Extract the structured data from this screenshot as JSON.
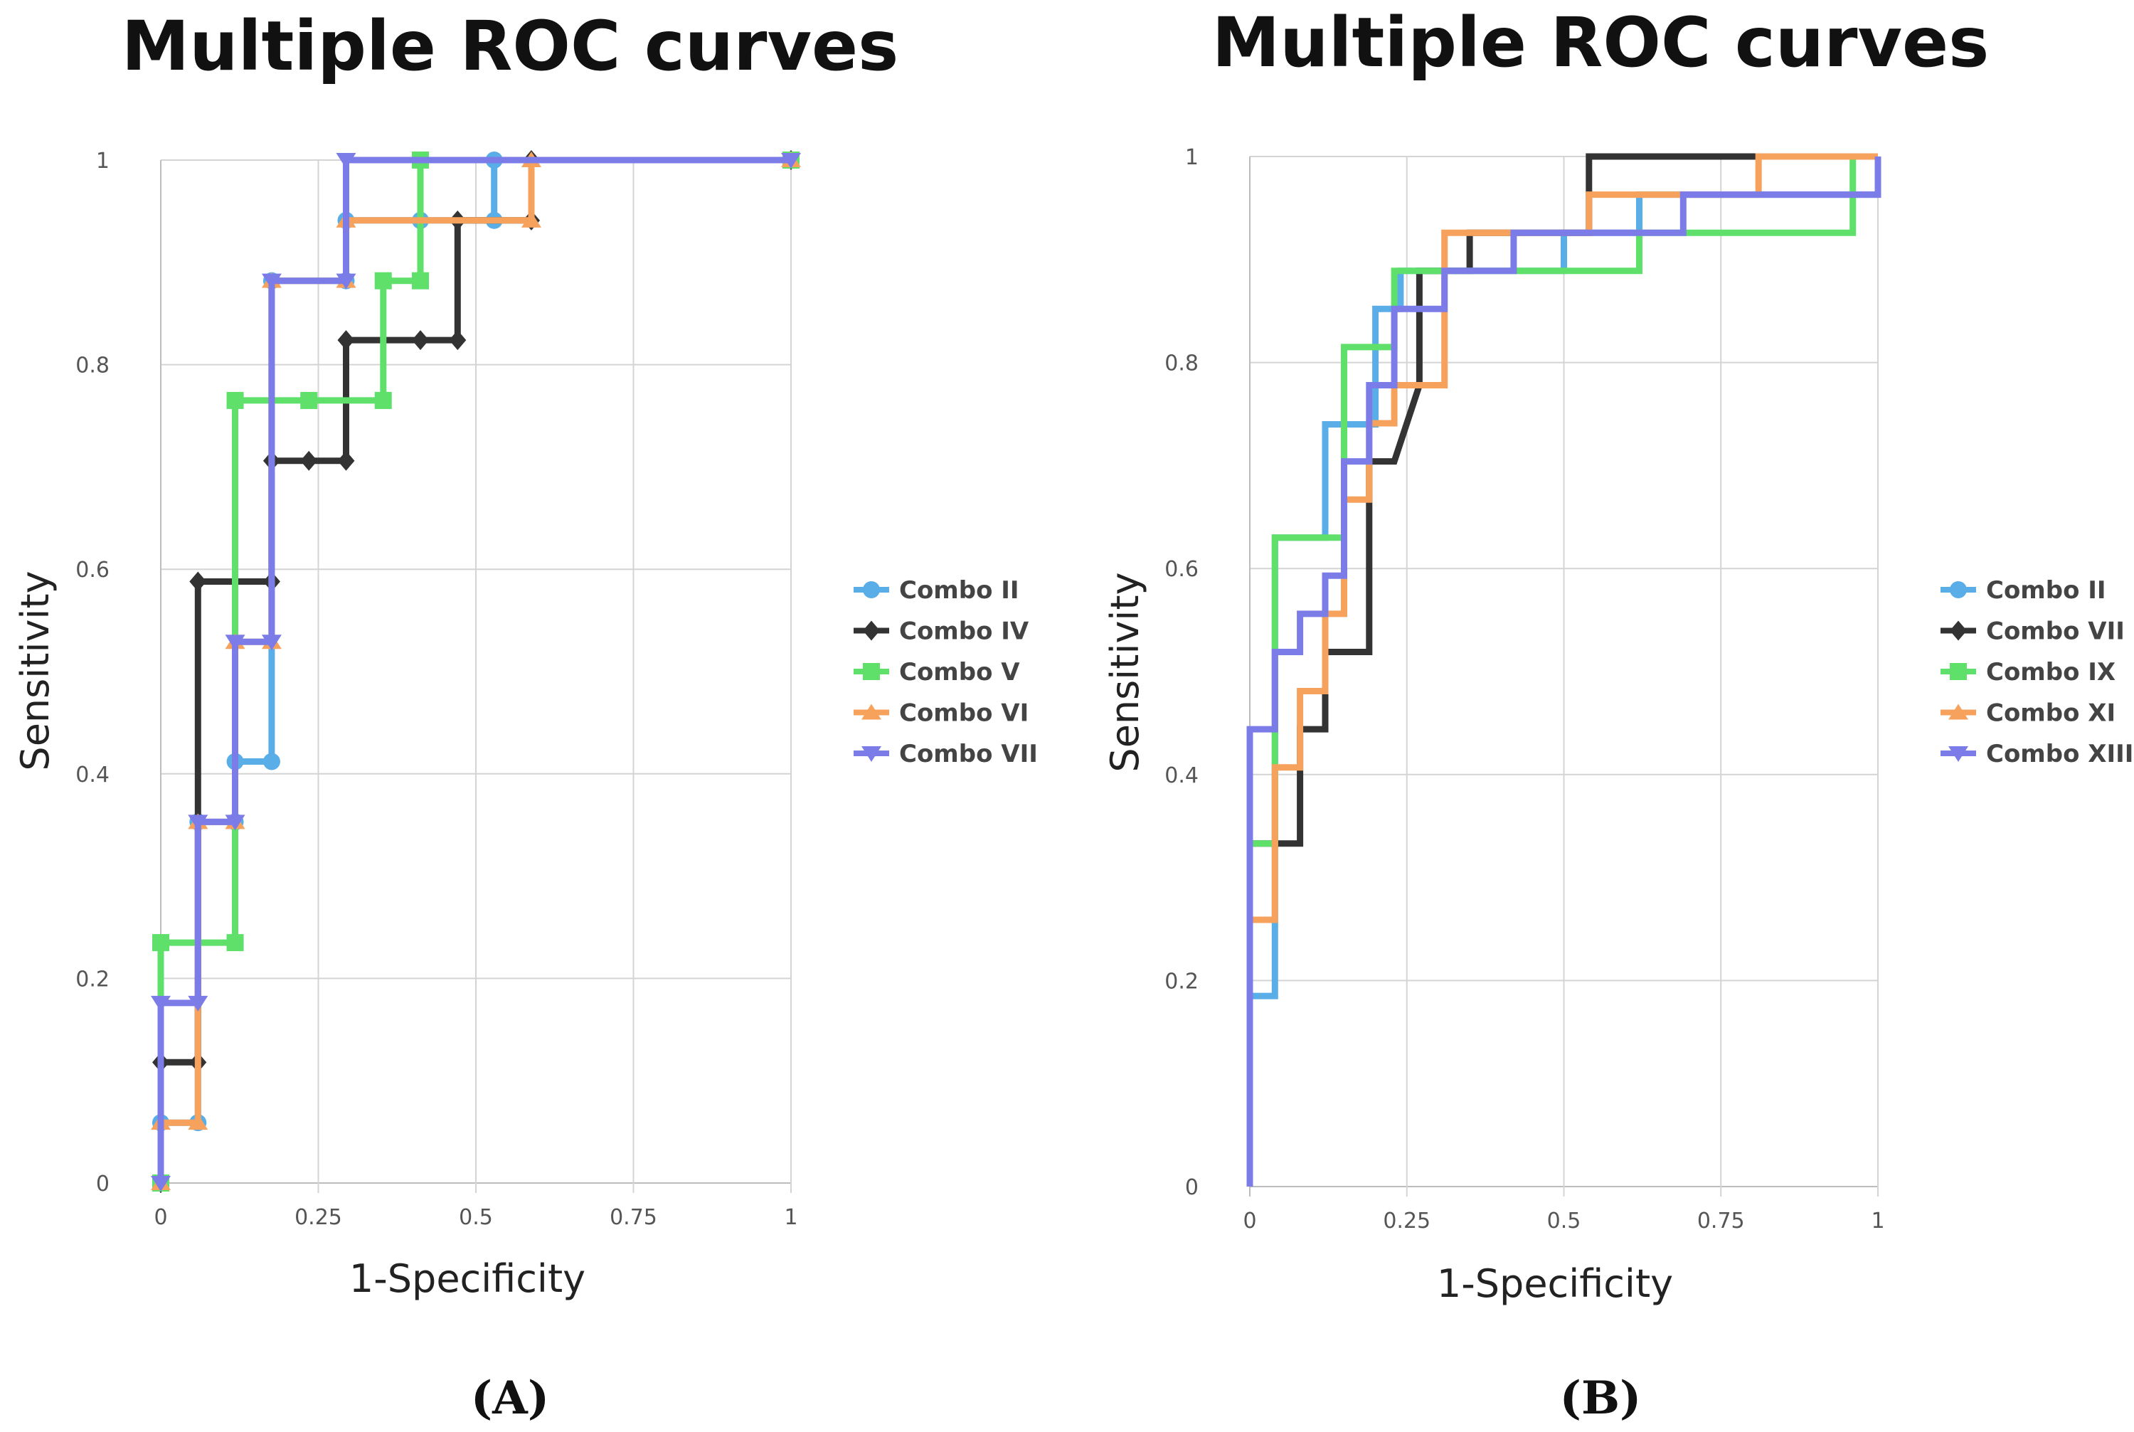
{
  "colors": {
    "combo_blue": "#5aaee8",
    "combo_dark": "#333333",
    "combo_green": "#5ee06a",
    "combo_orange": "#f6a25c",
    "combo_purple": "#7c7ce8"
  },
  "chart_data": [
    {
      "type": "line",
      "title": "Multiple ROC curves",
      "caption": "(A)",
      "xlabel": "1-Specificity",
      "ylabel": "Sensitivity",
      "xlim": [
        0,
        1
      ],
      "ylim": [
        0,
        1
      ],
      "grid": true,
      "legend_position": "right",
      "x_ticks": [
        0,
        0.25,
        0.5,
        0.75,
        1
      ],
      "x_tick_labels": [
        "0",
        "0.25",
        "0.5",
        "0.75",
        "1"
      ],
      "y_ticks": [
        0,
        0.2,
        0.4,
        0.6,
        0.8,
        1
      ],
      "y_tick_labels": [
        "0",
        "0.2",
        "0.4",
        "0.6",
        "0.8",
        "1"
      ],
      "series": [
        {
          "name": "Combo II",
          "color": "#5aaee8",
          "marker": "circle",
          "x": [
            0,
            0,
            0.059,
            0.059,
            0.118,
            0.118,
            0.176,
            0.176,
            0.294,
            0.294,
            0.412,
            0.412,
            0.529,
            0.529,
            1
          ],
          "y": [
            0,
            0.059,
            0.059,
            0.353,
            0.353,
            0.412,
            0.412,
            0.882,
            0.882,
            0.941,
            0.941,
            0.941,
            0.941,
            1,
            1
          ]
        },
        {
          "name": "Combo IV",
          "color": "#333333",
          "marker": "diamond",
          "x": [
            0,
            0,
            0.059,
            0.059,
            0.176,
            0.176,
            0.235,
            0.294,
            0.294,
            0.412,
            0.471,
            0.471,
            0.588,
            0.588,
            1
          ],
          "y": [
            0,
            0.118,
            0.118,
            0.588,
            0.588,
            0.706,
            0.706,
            0.706,
            0.824,
            0.824,
            0.824,
            0.941,
            0.941,
            1,
            1
          ]
        },
        {
          "name": "Combo V",
          "color": "#5ee06a",
          "marker": "square",
          "x": [
            0,
            0,
            0.118,
            0.118,
            0.235,
            0.353,
            0.353,
            0.412,
            0.412,
            1
          ],
          "y": [
            0,
            0.235,
            0.235,
            0.765,
            0.765,
            0.765,
            0.882,
            0.882,
            1,
            1
          ]
        },
        {
          "name": "Combo VI",
          "color": "#f6a25c",
          "marker": "triangle-up",
          "x": [
            0,
            0,
            0.059,
            0.059,
            0.118,
            0.118,
            0.176,
            0.176,
            0.294,
            0.294,
            0.588,
            0.588,
            1
          ],
          "y": [
            0,
            0.059,
            0.059,
            0.353,
            0.353,
            0.529,
            0.529,
            0.882,
            0.882,
            0.941,
            0.941,
            1,
            1
          ]
        },
        {
          "name": "Combo VII",
          "color": "#7c7ce8",
          "marker": "triangle-down",
          "x": [
            0,
            0,
            0.059,
            0.059,
            0.118,
            0.118,
            0.176,
            0.176,
            0.294,
            0.294,
            1
          ],
          "y": [
            0,
            0.176,
            0.176,
            0.353,
            0.353,
            0.529,
            0.529,
            0.882,
            0.882,
            1,
            1
          ]
        }
      ]
    },
    {
      "type": "line",
      "title": "Multiple ROC curves",
      "caption": "(B)",
      "xlabel": "1-Specificity",
      "ylabel": "Sensitivity",
      "xlim": [
        0,
        1
      ],
      "ylim": [
        0,
        1
      ],
      "grid": true,
      "legend_position": "right",
      "x_ticks": [
        0,
        0.25,
        0.5,
        0.75,
        1
      ],
      "x_tick_labels": [
        "0",
        "0.25",
        "0.5",
        "0.75",
        "1"
      ],
      "y_ticks": [
        0,
        0.2,
        0.4,
        0.6,
        0.8,
        1
      ],
      "y_tick_labels": [
        "0",
        "0.2",
        "0.4",
        "0.6",
        "0.8",
        "1"
      ],
      "series": [
        {
          "name": "Combo II",
          "color": "#5aaee8",
          "marker": "circle",
          "x": [
            0,
            0,
            0.04,
            0.04,
            0.12,
            0.12,
            0.2,
            0.2,
            0.24,
            0.24,
            0.31,
            0.31,
            0.5,
            0.5,
            0.62,
            0.62,
            1
          ],
          "y": [
            0,
            0.185,
            0.185,
            0.63,
            0.63,
            0.74,
            0.74,
            0.852,
            0.852,
            0.889,
            0.889,
            0.889,
            0.889,
            0.926,
            0.926,
            0.963,
            0.963
          ]
        },
        {
          "name": "Combo VII",
          "color": "#333333",
          "marker": "diamond",
          "x": [
            0,
            0,
            0.04,
            0.04,
            0.08,
            0.08,
            0.12,
            0.12,
            0.19,
            0.19,
            0.23,
            0.27,
            0.27,
            0.35,
            0.35,
            0.54,
            0.54,
            1
          ],
          "y": [
            0,
            0.333,
            0.333,
            0.333,
            0.333,
            0.444,
            0.444,
            0.519,
            0.519,
            0.704,
            0.704,
            0.778,
            0.889,
            0.889,
            0.926,
            0.926,
            1,
            1
          ]
        },
        {
          "name": "Combo IX",
          "color": "#5ee06a",
          "marker": "square",
          "x": [
            0,
            0,
            0.04,
            0.04,
            0.15,
            0.15,
            0.23,
            0.23,
            0.42,
            0.42,
            0.62,
            0.62,
            0.69,
            0.69,
            0.96,
            0.96,
            1
          ],
          "y": [
            0,
            0.333,
            0.333,
            0.63,
            0.63,
            0.815,
            0.815,
            0.889,
            0.889,
            0.889,
            0.889,
            0.926,
            0.926,
            0.926,
            0.926,
            1,
            1
          ]
        },
        {
          "name": "Combo XI",
          "color": "#f6a25c",
          "marker": "triangle-up",
          "x": [
            0,
            0,
            0.04,
            0.04,
            0.08,
            0.08,
            0.12,
            0.12,
            0.15,
            0.15,
            0.19,
            0.19,
            0.23,
            0.23,
            0.31,
            0.31,
            0.54,
            0.54,
            0.81,
            0.81,
            1
          ],
          "y": [
            0,
            0.259,
            0.259,
            0.407,
            0.407,
            0.481,
            0.481,
            0.556,
            0.556,
            0.667,
            0.667,
            0.741,
            0.741,
            0.778,
            0.778,
            0.926,
            0.926,
            0.963,
            0.963,
            1,
            1
          ]
        },
        {
          "name": "Combo XIII",
          "color": "#7c7ce8",
          "marker": "triangle-down",
          "x": [
            0,
            0,
            0.04,
            0.04,
            0.08,
            0.08,
            0.12,
            0.12,
            0.15,
            0.15,
            0.19,
            0.19,
            0.23,
            0.23,
            0.31,
            0.31,
            0.42,
            0.42,
            0.69,
            0.69,
            1,
            1
          ],
          "y": [
            0,
            0.444,
            0.444,
            0.519,
            0.519,
            0.556,
            0.556,
            0.593,
            0.593,
            0.704,
            0.704,
            0.778,
            0.778,
            0.852,
            0.852,
            0.889,
            0.889,
            0.926,
            0.926,
            0.963,
            0.963,
            1
          ]
        }
      ]
    }
  ]
}
